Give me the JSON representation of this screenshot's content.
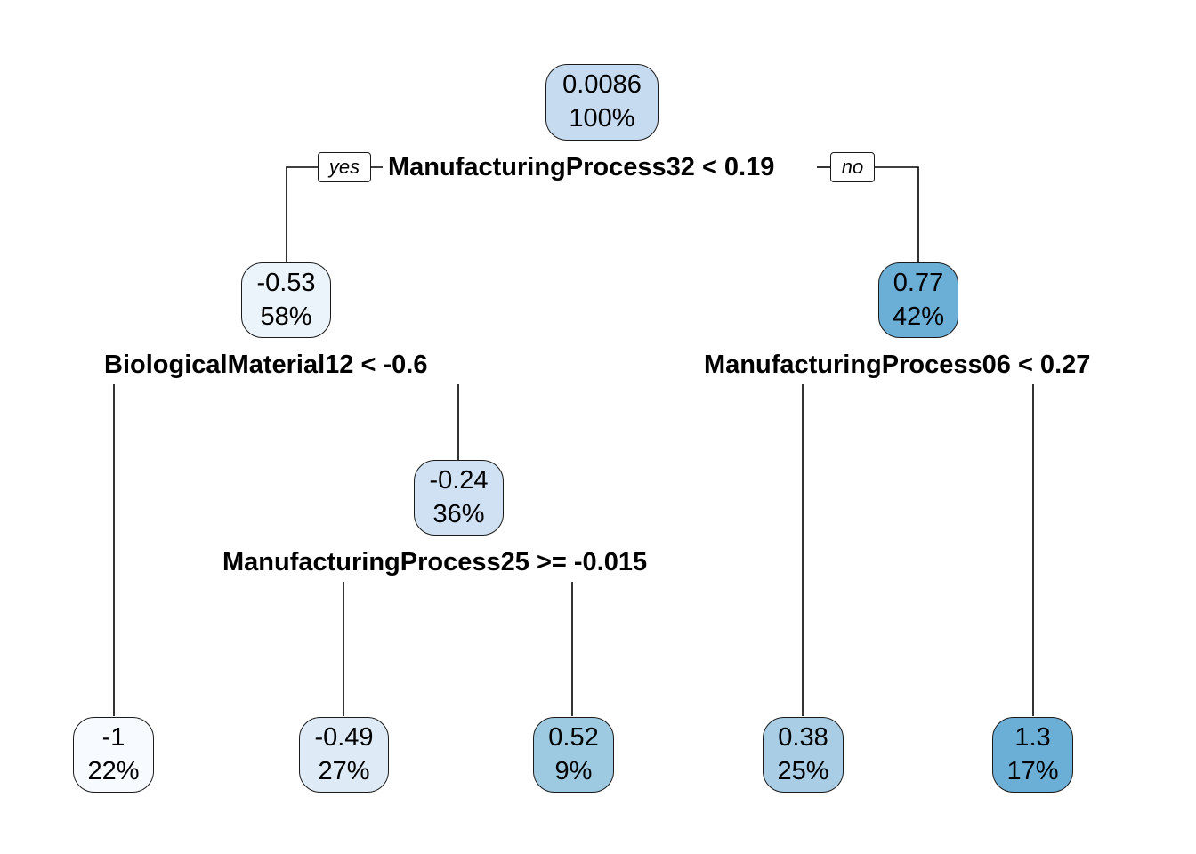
{
  "tree": {
    "nodes": [
      {
        "id": "root",
        "value": "0.0086",
        "percent": "100%",
        "fill": "#c6dbef"
      },
      {
        "id": "n2",
        "value": "-0.53",
        "percent": "58%",
        "fill": "#ebf3fb"
      },
      {
        "id": "n3",
        "value": "0.77",
        "percent": "42%",
        "fill": "#6baed6"
      },
      {
        "id": "n5",
        "value": "-0.24",
        "percent": "36%",
        "fill": "#cfe1f2"
      },
      {
        "id": "leaf4",
        "value": "-1",
        "percent": "22%",
        "fill": "#f7fbff"
      },
      {
        "id": "leaf10",
        "value": "-0.49",
        "percent": "27%",
        "fill": "#deebf7"
      },
      {
        "id": "leaf11",
        "value": "0.52",
        "percent": "9%",
        "fill": "#9ecae1"
      },
      {
        "id": "leaf6",
        "value": "0.38",
        "percent": "25%",
        "fill": "#a8cde4"
      },
      {
        "id": "leaf7",
        "value": "1.3",
        "percent": "17%",
        "fill": "#6baed6"
      }
    ],
    "splits": {
      "root": "ManufacturingProcess32 < 0.19",
      "n2": "BiologicalMaterial12 < -0.6",
      "n3": "ManufacturingProcess06 < 0.27",
      "n5": "ManufacturingProcess25 >= -0.015"
    },
    "edge_labels": {
      "yes": "yes",
      "no": "no"
    }
  }
}
